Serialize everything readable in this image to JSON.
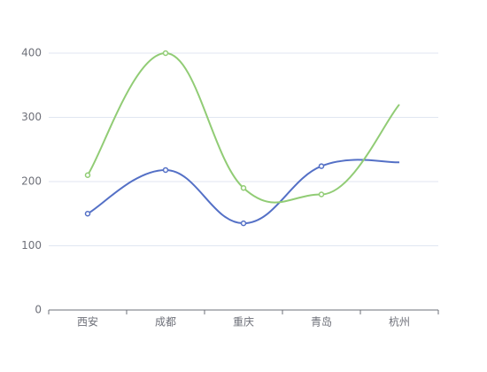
{
  "chart_data": {
    "type": "line",
    "categories": [
      "西安",
      "成都",
      "重庆",
      "青岛",
      "杭州"
    ],
    "series": [
      {
        "color": "#5470c6",
        "values": [
          150,
          218,
          135,
          224,
          230
        ]
      },
      {
        "color": "#91cc75",
        "values": [
          210,
          400,
          190,
          180,
          320
        ]
      }
    ],
    "ylim": [
      0,
      400
    ],
    "yticks": [
      0,
      100,
      200,
      300,
      400
    ],
    "grid": true
  }
}
